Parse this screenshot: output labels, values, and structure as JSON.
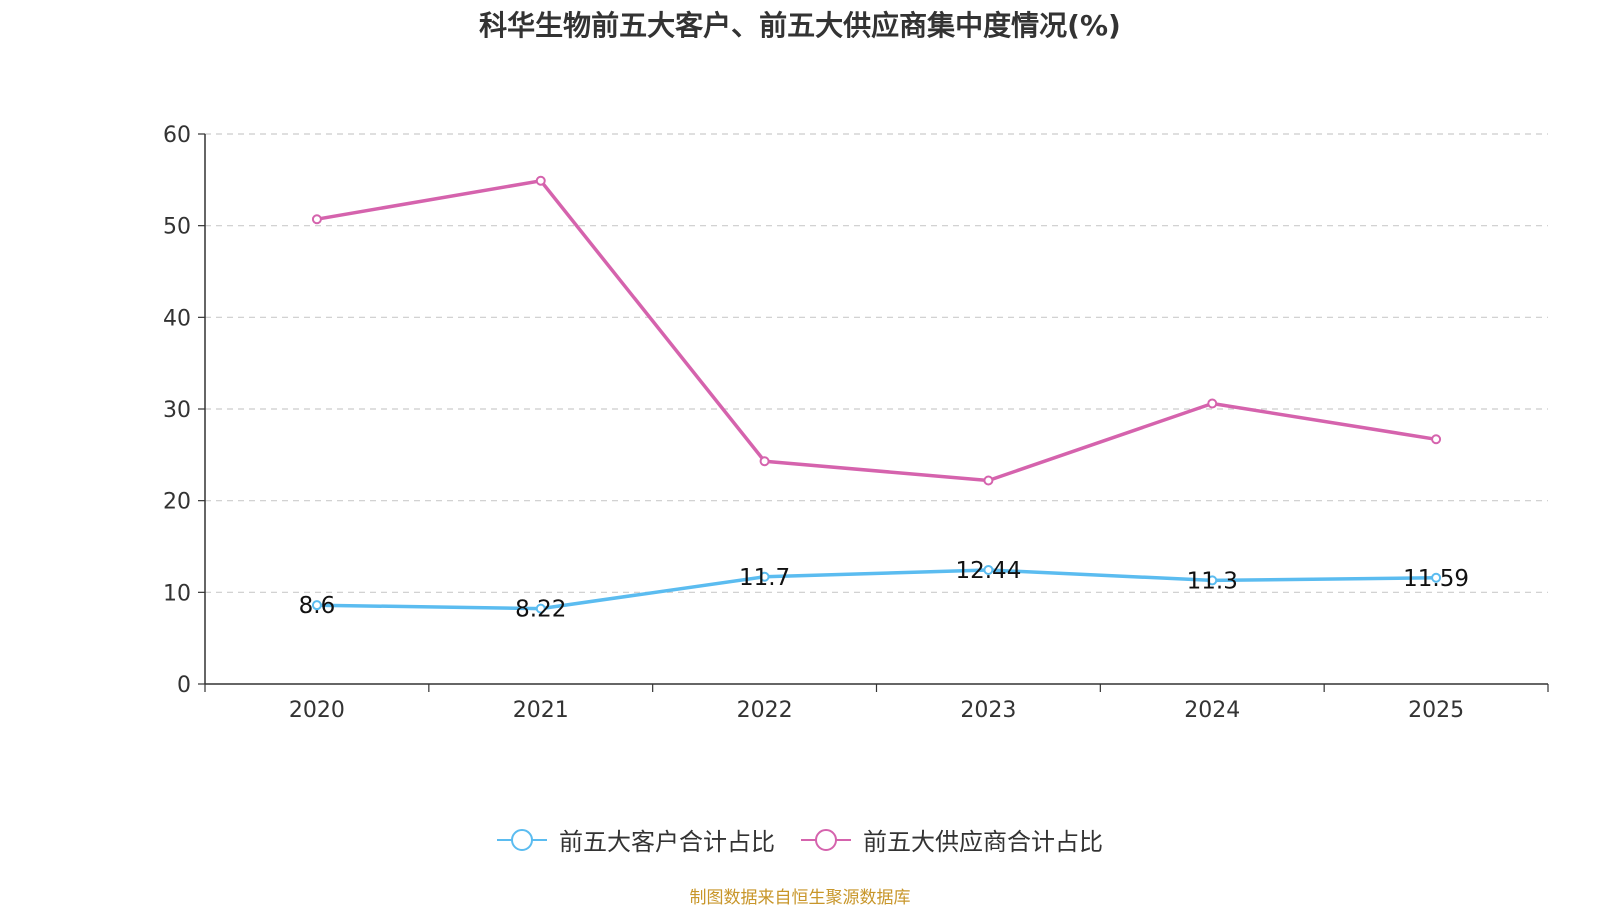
{
  "chart_data": {
    "type": "line",
    "title": "科华生物前五大客户、前五大供应商集中度情况(%)",
    "categories": [
      "2020",
      "2021",
      "2022",
      "2023",
      "2024",
      "2025"
    ],
    "ylim": [
      0,
      60
    ],
    "yticks": [
      0,
      10,
      20,
      30,
      40,
      50,
      60
    ],
    "grid": true,
    "legend_position": "bottom",
    "series": [
      {
        "name": "前五大客户合计占比",
        "color": "#5bbcf0",
        "values": [
          8.6,
          8.22,
          11.7,
          12.44,
          11.3,
          11.59
        ],
        "labels": [
          "8.6",
          "8.22",
          "11.7",
          "12.44",
          "11.3",
          "11.59"
        ],
        "show_labels": true
      },
      {
        "name": "前五大供应商合计占比",
        "color": "#d563ad",
        "values": [
          50.7,
          54.9,
          24.3,
          22.2,
          30.6,
          26.7
        ],
        "show_labels": false
      }
    ]
  },
  "source_note": "制图数据来自恒生聚源数据库"
}
